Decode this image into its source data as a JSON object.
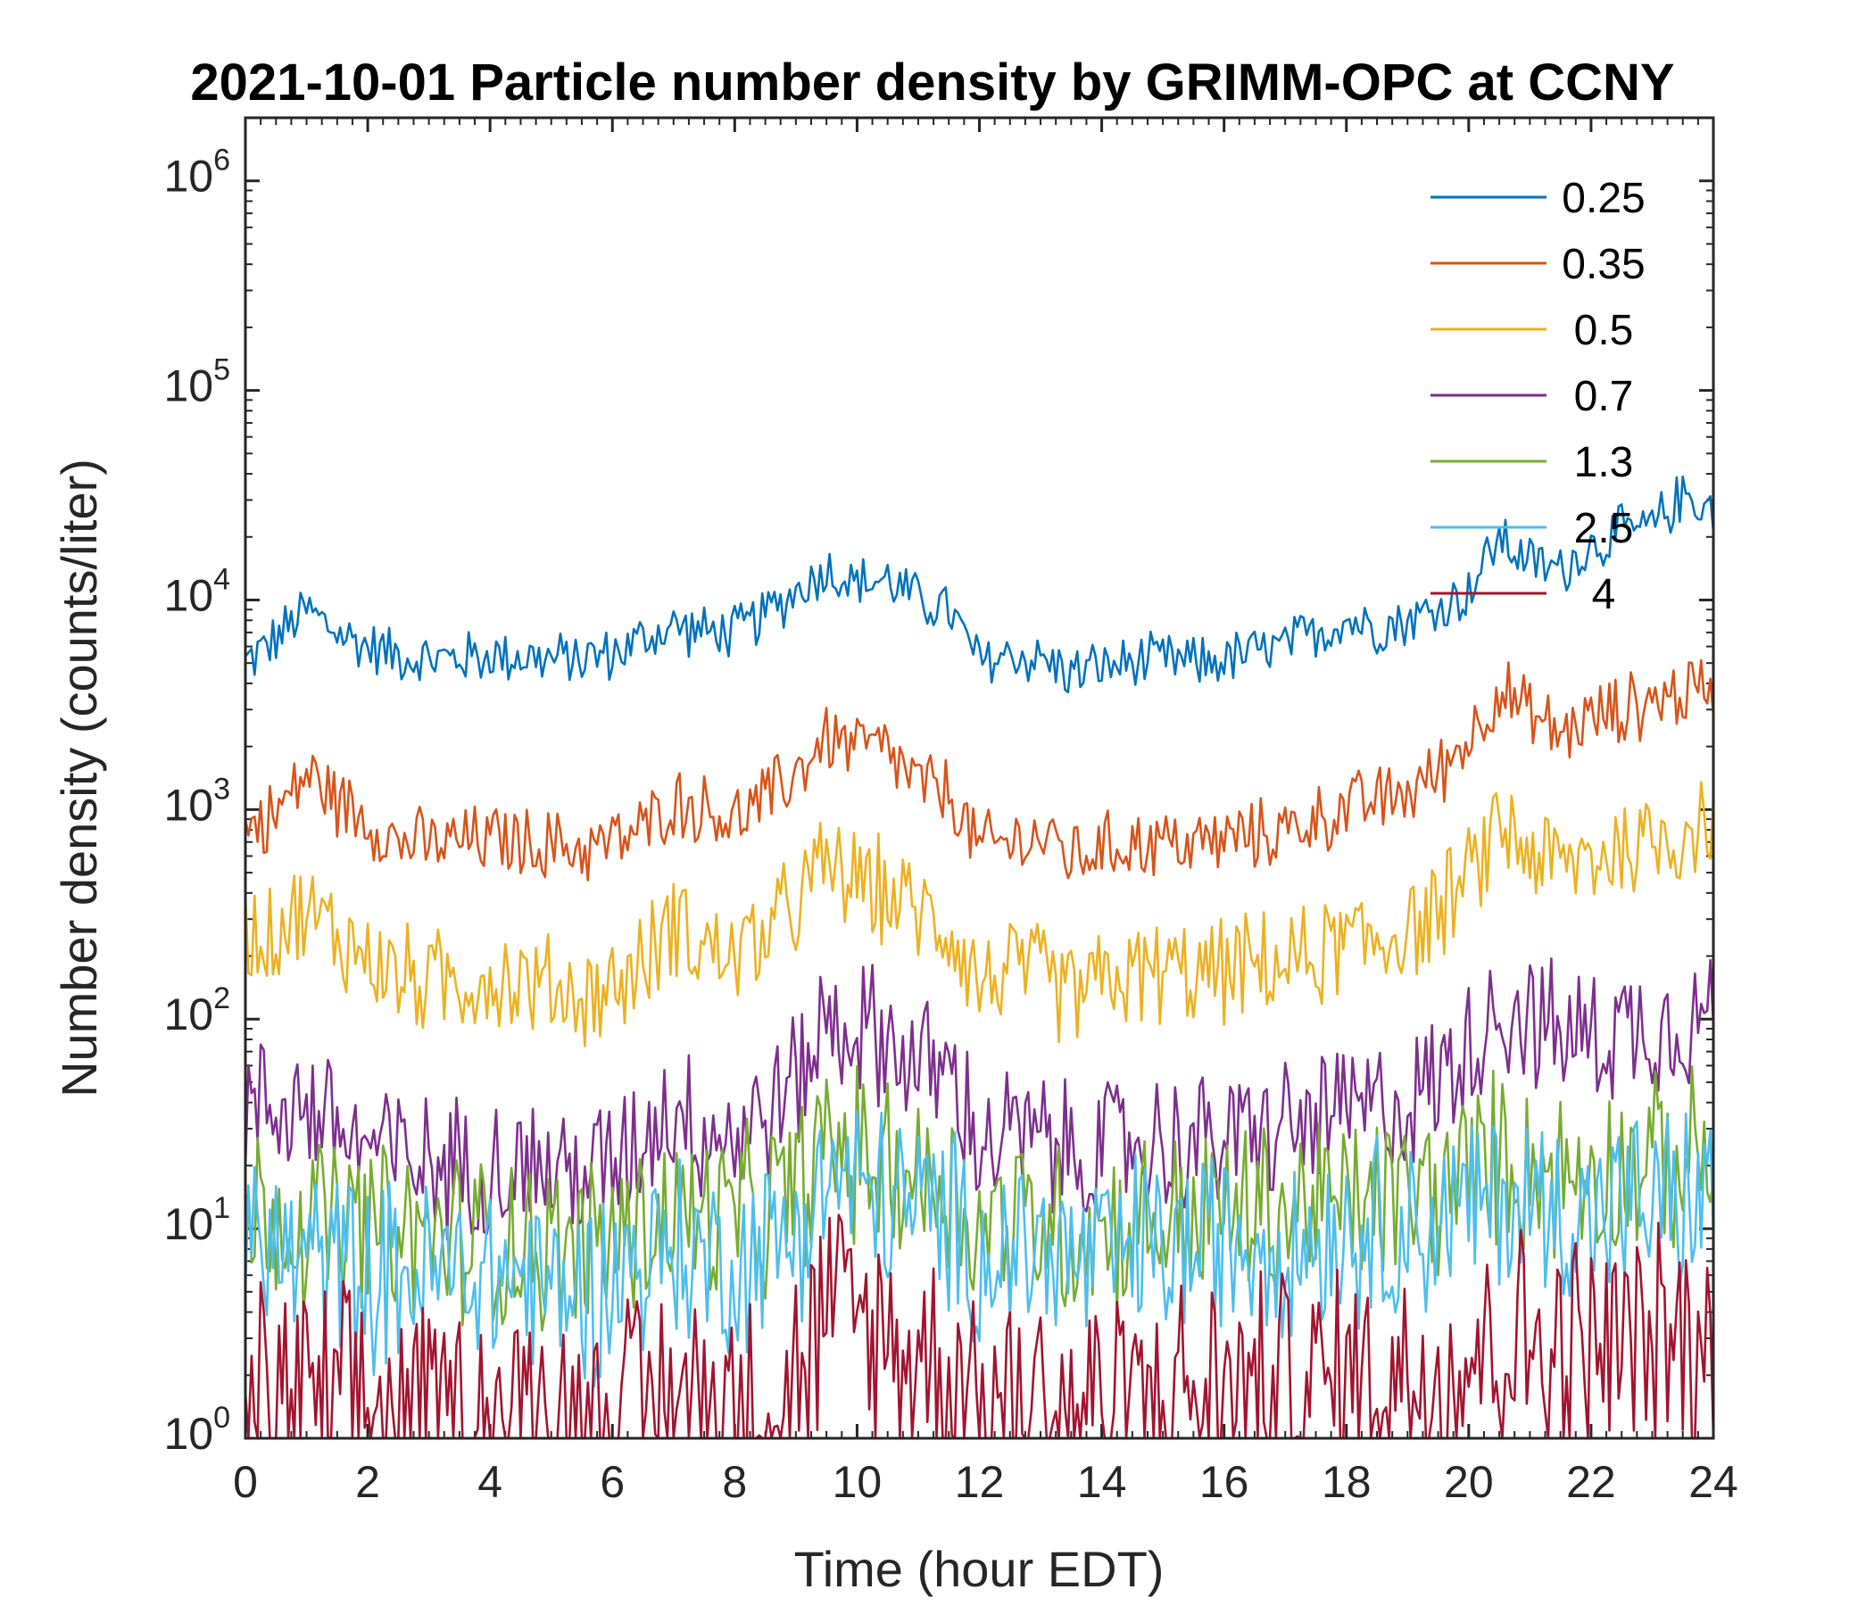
{
  "chart_data": {
    "type": "line",
    "title": "2021-10-01 Particle number density by GRIMM-OPC at CCNY",
    "xlabel": "Time (hour EDT)",
    "ylabel": "Number density (counts/liter)",
    "xlim": [
      0,
      24
    ],
    "ylim": [
      1,
      2000000
    ],
    "yscale": "log",
    "xticks": [
      0,
      2,
      4,
      6,
      8,
      10,
      12,
      14,
      16,
      18,
      20,
      22,
      24
    ],
    "xtick_labels": [
      "0",
      "2",
      "4",
      "6",
      "8",
      "10",
      "12",
      "14",
      "16",
      "18",
      "20",
      "22",
      "24"
    ],
    "yticks": [
      {
        "value": 1,
        "base": "10",
        "exp": "0"
      },
      {
        "value": 10,
        "base": "10",
        "exp": "1"
      },
      {
        "value": 100,
        "base": "10",
        "exp": "2"
      },
      {
        "value": 1000,
        "base": "10",
        "exp": "3"
      },
      {
        "value": 10000,
        "base": "10",
        "exp": "4"
      },
      {
        "value": 100000,
        "base": "10",
        "exp": "5"
      },
      {
        "value": 1000000,
        "base": "10",
        "exp": "6"
      }
    ],
    "legend_position": "top-right",
    "x": [
      0,
      0.5,
      1,
      1.5,
      2,
      2.5,
      3,
      3.5,
      4,
      4.5,
      5,
      5.5,
      6,
      6.5,
      7,
      7.5,
      8,
      8.5,
      9,
      9.5,
      10,
      10.5,
      11,
      11.5,
      12,
      12.5,
      13,
      13.5,
      14,
      14.5,
      15,
      15.5,
      16,
      16.5,
      17,
      17.5,
      18,
      18.5,
      19,
      19.5,
      20,
      20.5,
      21,
      21.5,
      22,
      22.5,
      23,
      23.5,
      24
    ],
    "series": [
      {
        "name": "0.25",
        "color": "#0072BD",
        "values": [
          5000,
          6500,
          9000,
          7000,
          6000,
          5500,
          5200,
          5300,
          5400,
          5400,
          5200,
          5300,
          5500,
          6500,
          7500,
          7000,
          7000,
          8500,
          11000,
          14000,
          12000,
          12500,
          10000,
          9000,
          5000,
          5500,
          5200,
          4500,
          4800,
          5000,
          5200,
          5000,
          5200,
          5600,
          6000,
          7000,
          8000,
          7500,
          8000,
          9000,
          11000,
          20000,
          15000,
          14000,
          18000,
          21000,
          22000,
          32000,
          27000
        ]
      },
      {
        "name": "0.35",
        "color": "#D95319",
        "values": [
          800,
          950,
          1500,
          1100,
          900,
          700,
          680,
          700,
          720,
          700,
          680,
          650,
          700,
          800,
          1100,
          1000,
          900,
          1100,
          1500,
          2200,
          2000,
          1900,
          1300,
          1200,
          650,
          700,
          750,
          600,
          650,
          700,
          700,
          680,
          720,
          750,
          800,
          900,
          1000,
          1100,
          1200,
          1500,
          2200,
          3800,
          2800,
          2300,
          2700,
          3000,
          3300,
          3600,
          4000
        ]
      },
      {
        "name": "0.5",
        "color": "#EDB120",
        "values": [
          250,
          280,
          320,
          250,
          200,
          160,
          150,
          150,
          160,
          150,
          140,
          130,
          140,
          180,
          300,
          220,
          200,
          250,
          350,
          550,
          450,
          400,
          320,
          280,
          150,
          170,
          160,
          130,
          150,
          160,
          170,
          160,
          170,
          180,
          180,
          200,
          230,
          240,
          270,
          330,
          450,
          850,
          650,
          520,
          600,
          650,
          700,
          800,
          900
        ]
      },
      {
        "name": "0.7",
        "color": "#7E2F8E",
        "values": [
          35,
          40,
          40,
          30,
          25,
          22,
          20,
          20,
          21,
          20,
          19,
          18,
          20,
          28,
          40,
          30,
          28,
          35,
          50,
          100,
          90,
          80,
          60,
          55,
          25,
          28,
          26,
          22,
          24,
          25,
          26,
          25,
          27,
          28,
          30,
          32,
          35,
          37,
          40,
          50,
          75,
          120,
          100,
          80,
          85,
          90,
          95,
          100,
          110
        ]
      },
      {
        "name": "1.3",
        "color": "#77AC30",
        "values": [
          12,
          12,
          11,
          10,
          10,
          9,
          9,
          9,
          9,
          9,
          8,
          8,
          9,
          10,
          12,
          11,
          11,
          12,
          15,
          25,
          22,
          20,
          18,
          16,
          10,
          11,
          11,
          10,
          10,
          11,
          11,
          11,
          12,
          12,
          12,
          13,
          13,
          14,
          14,
          15,
          18,
          22,
          20,
          18,
          19,
          20,
          20,
          21,
          22
        ]
      },
      {
        "name": "2.5",
        "color": "#4DBEEE",
        "values": [
          8,
          8,
          7,
          7,
          6,
          6,
          6,
          6,
          6,
          6,
          5,
          5,
          6,
          7,
          8,
          7,
          7,
          8,
          10,
          18,
          15,
          14,
          12,
          11,
          7,
          8,
          8,
          7,
          7,
          8,
          8,
          8,
          9,
          9,
          9,
          9,
          10,
          10,
          10,
          11,
          12,
          14,
          13,
          12,
          12,
          13,
          13,
          13,
          14
        ]
      },
      {
        "name": "4",
        "color": "#A2142F",
        "values": [
          1.5,
          1.6,
          1.5,
          1.4,
          1.4,
          1.3,
          1.3,
          1.3,
          1.3,
          1.3,
          1.2,
          1.2,
          1.3,
          1.4,
          1.6,
          1.5,
          1.5,
          1.6,
          2,
          4,
          3.5,
          3,
          2.5,
          2.3,
          1.5,
          1.6,
          1.6,
          1.4,
          1.5,
          1.5,
          1.6,
          1.6,
          1.7,
          1.7,
          1.7,
          1.8,
          1.9,
          2,
          2,
          2.2,
          2.5,
          3,
          2.8,
          2.6,
          2.7,
          2.8,
          2.8,
          2.9,
          3
        ]
      }
    ]
  }
}
